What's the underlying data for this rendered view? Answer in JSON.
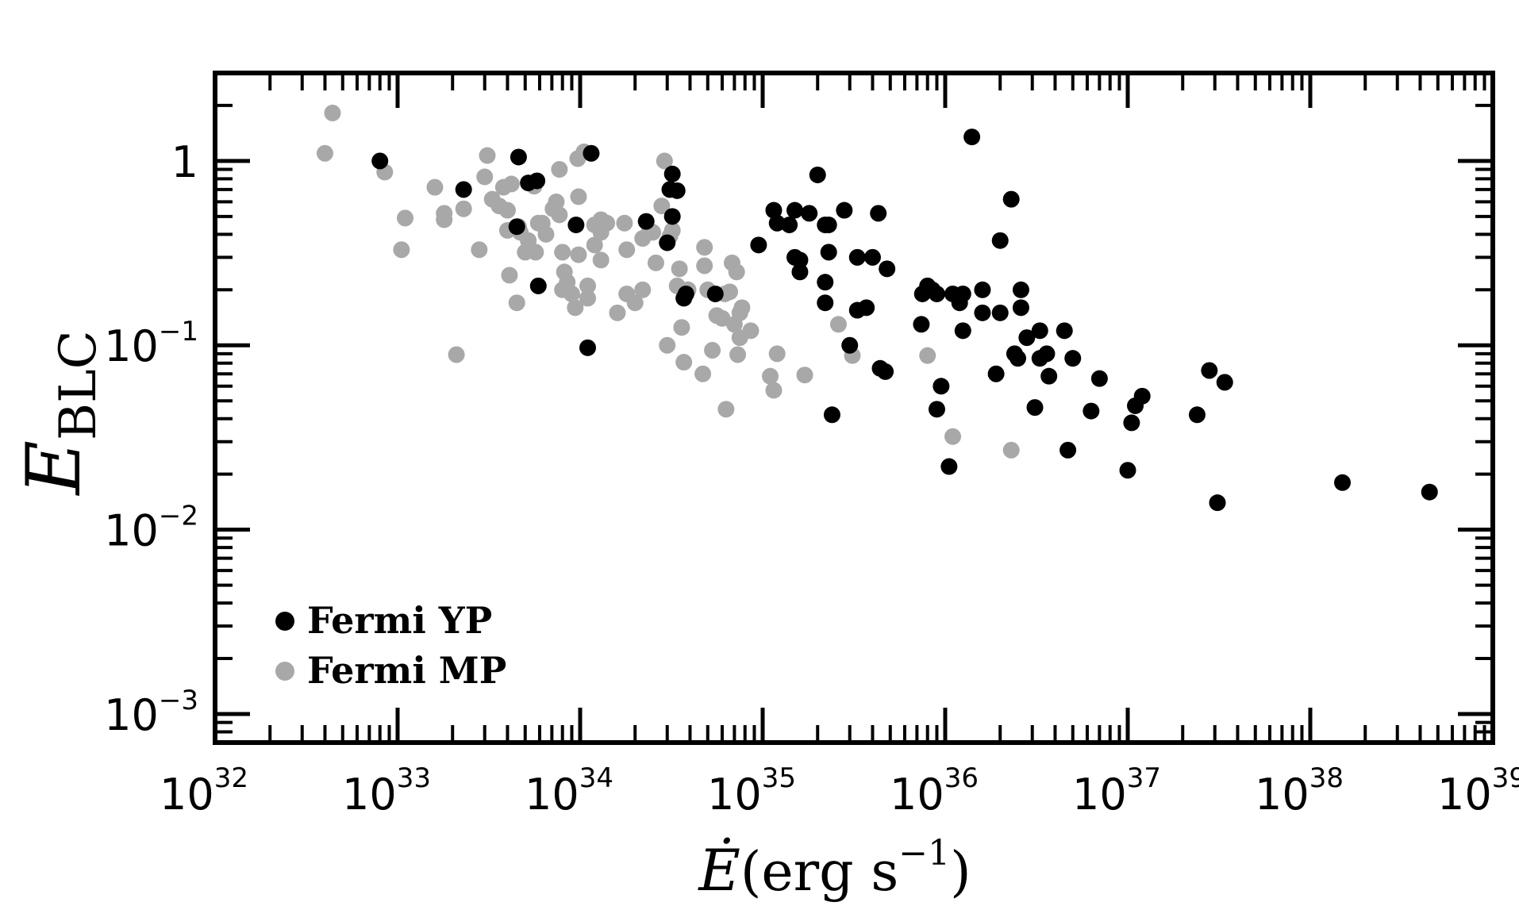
{
  "chart_data": {
    "type": "scatter",
    "xscale": "log",
    "yscale": "log",
    "xlim": [
      1e+32,
      1e+39
    ],
    "ylim": [
      0.0007,
      3
    ],
    "grid": false,
    "legend_position": "bottom-left",
    "xlabel": {
      "symbol": "Ė",
      "text": "(erg s",
      "sup": "−1",
      "close": ")"
    },
    "ylabel": {
      "main": "E",
      "sub": "BLC"
    },
    "x_ticks": [
      {
        "base": "10",
        "exp": "32",
        "value": 1e+32
      },
      {
        "base": "10",
        "exp": "33",
        "value": 1e+33
      },
      {
        "base": "10",
        "exp": "34",
        "value": 1e+34
      },
      {
        "base": "10",
        "exp": "35",
        "value": 1e+35
      },
      {
        "base": "10",
        "exp": "36",
        "value": 1e+36
      },
      {
        "base": "10",
        "exp": "37",
        "value": 1e+37
      },
      {
        "base": "10",
        "exp": "38",
        "value": 1e+38
      },
      {
        "base": "10",
        "exp": "39",
        "value": 1e+39
      }
    ],
    "y_ticks": [
      {
        "base": "1",
        "exp": "",
        "value": 1
      },
      {
        "base": "10",
        "exp": "−1",
        "value": 0.1
      },
      {
        "base": "10",
        "exp": "−2",
        "value": 0.01
      },
      {
        "base": "10",
        "exp": "−3",
        "value": 0.001
      }
    ],
    "series": [
      {
        "name": "Fermi YP",
        "color": "#000000",
        "points": [
          [
            8e+32,
            1.0
          ],
          [
            2.3e+33,
            0.7
          ],
          [
            4.6e+33,
            1.05
          ],
          [
            5.2e+33,
            0.76
          ],
          [
            5.8e+33,
            0.78
          ],
          [
            4.5e+33,
            0.44
          ],
          [
            5.9e+33,
            0.21
          ],
          [
            1.15e+34,
            1.1
          ],
          [
            9.5e+33,
            0.45
          ],
          [
            1.1e+34,
            0.097
          ],
          [
            2.3e+34,
            0.47
          ],
          [
            3e+34,
            0.36
          ],
          [
            3.1e+34,
            0.7
          ],
          [
            3.4e+34,
            0.69
          ],
          [
            3.2e+34,
            0.85
          ],
          [
            3.2e+34,
            0.5
          ],
          [
            3.7e+34,
            0.18
          ],
          [
            3.8e+34,
            0.19
          ],
          [
            5.5e+34,
            0.19
          ],
          [
            9.5e+34,
            0.35
          ],
          [
            1.15e+35,
            0.54
          ],
          [
            1.2e+35,
            0.46
          ],
          [
            1.4e+35,
            0.45
          ],
          [
            1.5e+35,
            0.54
          ],
          [
            1.5e+35,
            0.3
          ],
          [
            1.6e+35,
            0.29
          ],
          [
            1.6e+35,
            0.25
          ],
          [
            1.8e+35,
            0.52
          ],
          [
            2e+35,
            0.84
          ],
          [
            2.2e+35,
            0.45
          ],
          [
            2.3e+35,
            0.45
          ],
          [
            2.3e+35,
            0.32
          ],
          [
            2.2e+35,
            0.22
          ],
          [
            2.2e+35,
            0.17
          ],
          [
            2.4e+35,
            0.042
          ],
          [
            2.8e+35,
            0.54
          ],
          [
            3e+35,
            0.1
          ],
          [
            3.3e+35,
            0.3
          ],
          [
            3.3e+35,
            0.155
          ],
          [
            3.7e+35,
            0.16
          ],
          [
            4e+35,
            0.3
          ],
          [
            4.3e+35,
            0.52
          ],
          [
            4.4e+35,
            0.075
          ],
          [
            4.7e+35,
            0.072
          ],
          [
            4.8e+35,
            0.26
          ],
          [
            7.4e+35,
            0.13
          ],
          [
            7.5e+35,
            0.19
          ],
          [
            8e+35,
            0.21
          ],
          [
            8.5e+35,
            0.2
          ],
          [
            9e+35,
            0.19
          ],
          [
            9.5e+35,
            0.06
          ],
          [
            9e+35,
            0.045
          ],
          [
            1.05e+36,
            0.022
          ],
          [
            1.1e+36,
            0.19
          ],
          [
            1.2e+36,
            0.17
          ],
          [
            1.25e+36,
            0.19
          ],
          [
            1.25e+36,
            0.12
          ],
          [
            1.4e+36,
            1.35
          ],
          [
            1.6e+36,
            0.2
          ],
          [
            1.6e+36,
            0.15
          ],
          [
            1.9e+36,
            0.07
          ],
          [
            2e+36,
            0.37
          ],
          [
            2e+36,
            0.15
          ],
          [
            2.3e+36,
            0.62
          ],
          [
            2.4e+36,
            0.09
          ],
          [
            2.5e+36,
            0.085
          ],
          [
            2.6e+36,
            0.2
          ],
          [
            2.6e+36,
            0.16
          ],
          [
            2.8e+36,
            0.11
          ],
          [
            3.1e+36,
            0.046
          ],
          [
            3.3e+36,
            0.12
          ],
          [
            3.3e+36,
            0.085
          ],
          [
            3.6e+36,
            0.09
          ],
          [
            3.7e+36,
            0.068
          ],
          [
            4.5e+36,
            0.12
          ],
          [
            4.7e+36,
            0.027
          ],
          [
            5e+36,
            0.085
          ],
          [
            6.3e+36,
            0.044
          ],
          [
            7e+36,
            0.066
          ],
          [
            1e+37,
            0.021
          ],
          [
            1.05e+37,
            0.038
          ],
          [
            1.1e+37,
            0.047
          ],
          [
            1.2e+37,
            0.053
          ],
          [
            2.4e+37,
            0.042
          ],
          [
            2.8e+37,
            0.073
          ],
          [
            3.1e+37,
            0.014
          ],
          [
            3.4e+37,
            0.063
          ],
          [
            1.5e+38,
            0.018
          ],
          [
            4.5e+38,
            0.016
          ]
        ]
      },
      {
        "name": "Fermi MP",
        "color": "#a8a8a8",
        "points": [
          [
            4.4e+32,
            1.82
          ],
          [
            4e+32,
            1.1
          ],
          [
            8.5e+32,
            0.87
          ],
          [
            1.05e+33,
            0.33
          ],
          [
            1.1e+33,
            0.49
          ],
          [
            1.6e+33,
            0.72
          ],
          [
            1.8e+33,
            0.48
          ],
          [
            1.8e+33,
            0.52
          ],
          [
            2.1e+33,
            0.089
          ],
          [
            2.3e+33,
            0.55
          ],
          [
            2.8e+33,
            0.33
          ],
          [
            3e+33,
            0.82
          ],
          [
            3.1e+33,
            1.07
          ],
          [
            3.3e+33,
            0.62
          ],
          [
            3.6e+33,
            0.57
          ],
          [
            3.8e+33,
            0.72
          ],
          [
            4e+33,
            0.42
          ],
          [
            4.1e+33,
            0.24
          ],
          [
            4.2e+33,
            0.75
          ],
          [
            4e+33,
            0.54
          ],
          [
            4.5e+33,
            0.17
          ],
          [
            4.6e+33,
            0.44
          ],
          [
            4.7e+33,
            0.41
          ],
          [
            5e+33,
            0.32
          ],
          [
            5.2e+33,
            0.37
          ],
          [
            5.6e+33,
            0.73
          ],
          [
            5.7e+33,
            0.32
          ],
          [
            5.9e+33,
            0.46
          ],
          [
            6.2e+33,
            0.46
          ],
          [
            6.5e+33,
            0.4
          ],
          [
            7.1e+33,
            0.55
          ],
          [
            7.4e+33,
            0.6
          ],
          [
            7.7e+33,
            0.51
          ],
          [
            7.7e+33,
            0.9
          ],
          [
            8e+33,
            0.32
          ],
          [
            8e+33,
            0.2
          ],
          [
            8.2e+33,
            0.25
          ],
          [
            8.5e+33,
            0.22
          ],
          [
            9e+33,
            0.19
          ],
          [
            9.4e+33,
            0.16
          ],
          [
            9.8e+33,
            0.31
          ],
          [
            9.7e+33,
            1.03
          ],
          [
            9.8e+33,
            0.64
          ],
          [
            1.05e+34,
            1.12
          ],
          [
            1.1e+34,
            0.21
          ],
          [
            1.1e+34,
            0.18
          ],
          [
            1.2e+34,
            0.35
          ],
          [
            1.2e+34,
            0.45
          ],
          [
            1.3e+34,
            0.29
          ],
          [
            1.3e+34,
            0.48
          ],
          [
            1.3e+34,
            0.41
          ],
          [
            1.4e+34,
            0.46
          ],
          [
            1.6e+34,
            0.15
          ],
          [
            1.75e+34,
            0.46
          ],
          [
            1.8e+34,
            0.33
          ],
          [
            1.8e+34,
            0.19
          ],
          [
            2e+34,
            0.17
          ],
          [
            2.2e+34,
            0.38
          ],
          [
            2.2e+34,
            0.2
          ],
          [
            2.4e+34,
            0.42
          ],
          [
            2.5e+34,
            0.41
          ],
          [
            2.6e+34,
            0.28
          ],
          [
            2.8e+34,
            0.57
          ],
          [
            2.9e+34,
            1.0
          ],
          [
            3e+34,
            0.1
          ],
          [
            3.1e+34,
            0.39
          ],
          [
            3.2e+34,
            0.42
          ],
          [
            3.4e+34,
            0.21
          ],
          [
            3.5e+34,
            0.26
          ],
          [
            3.6e+34,
            0.125
          ],
          [
            3.7e+34,
            0.081
          ],
          [
            3.9e+34,
            0.2
          ],
          [
            4.7e+34,
            0.07
          ],
          [
            4.8e+34,
            0.34
          ],
          [
            4.8e+34,
            0.27
          ],
          [
            5e+34,
            0.2
          ],
          [
            5.3e+34,
            0.094
          ],
          [
            5.6e+34,
            0.145
          ],
          [
            6e+34,
            0.14
          ],
          [
            6.2e+34,
            0.19
          ],
          [
            6.3e+34,
            0.045
          ],
          [
            6.6e+34,
            0.195
          ],
          [
            6.8e+34,
            0.28
          ],
          [
            7e+34,
            0.13
          ],
          [
            7.2e+34,
            0.25
          ],
          [
            7.3e+34,
            0.089
          ],
          [
            7.5e+34,
            0.11
          ],
          [
            7.5e+34,
            0.15
          ],
          [
            7.7e+34,
            0.16
          ],
          [
            8.6e+34,
            0.12
          ],
          [
            1.1e+35,
            0.068
          ],
          [
            1.15e+35,
            0.057
          ],
          [
            1.2e+35,
            0.09
          ],
          [
            1.7e+35,
            0.069
          ],
          [
            2.6e+35,
            0.13
          ],
          [
            3.1e+35,
            0.088
          ],
          [
            8e+35,
            0.088
          ],
          [
            1.1e+36,
            0.032
          ],
          [
            2.3e+36,
            0.027
          ]
        ]
      }
    ]
  }
}
